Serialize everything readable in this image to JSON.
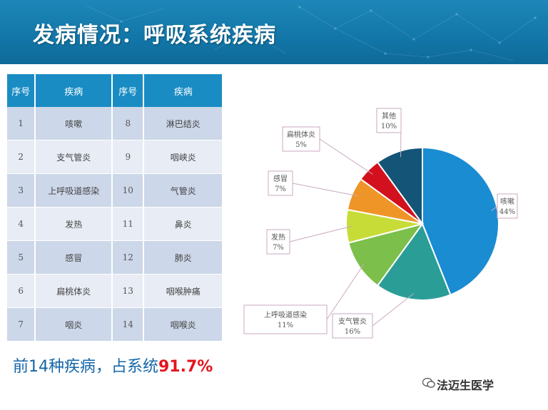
{
  "header": {
    "title": "发病情况：呼吸系统疾病"
  },
  "table": {
    "headers": [
      "序号",
      "疾病",
      "序号",
      "疾病"
    ],
    "rows": [
      [
        "1",
        "咳嗽",
        "8",
        "淋巴结炎"
      ],
      [
        "2",
        "支气管炎",
        "9",
        "咽峡炎"
      ],
      [
        "3",
        "上呼吸道感染",
        "10",
        "气管炎"
      ],
      [
        "4",
        "发热",
        "11",
        "鼻炎"
      ],
      [
        "5",
        "感冒",
        "12",
        "肺炎"
      ],
      [
        "6",
        "扁桃体炎",
        "13",
        "咽喉肿痛"
      ],
      [
        "7",
        "咽炎",
        "14",
        "咽喉炎"
      ]
    ]
  },
  "summary": {
    "prefix": "前14种疾病，占系统",
    "percent": "91.7%"
  },
  "chart_data": {
    "type": "pie",
    "slices": [
      {
        "label": "咳嗽",
        "value": 44,
        "pct": "44%",
        "color": "#1a8cd2"
      },
      {
        "label": "支气管炎",
        "value": 16,
        "pct": "16%",
        "color": "#2a9d96"
      },
      {
        "label": "上呼吸道感染",
        "value": 11,
        "pct": "11%",
        "color": "#7cbf4a"
      },
      {
        "label": "发热",
        "value": 7,
        "pct": "7%",
        "color": "#c8dc38"
      },
      {
        "label": "感冒",
        "value": 7,
        "pct": "7%",
        "color": "#ef9528"
      },
      {
        "label": "扁桃体炎",
        "value": 5,
        "pct": "5%",
        "color": "#d2101e"
      },
      {
        "label": "其他",
        "value": 10,
        "pct": "10%",
        "color": "#145476"
      }
    ]
  },
  "watermark": {
    "text": "法迈生医学"
  }
}
